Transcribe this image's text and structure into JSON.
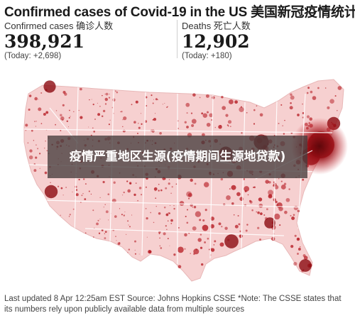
{
  "header": {
    "title": "Confirmed cases of Covid-19 in the US 美国新冠疫情统计"
  },
  "stats": {
    "confirmed": {
      "label": "Confirmed cases 确诊人数",
      "value": "398,921",
      "today": "(Today: +2,698)"
    },
    "deaths": {
      "label": "Deaths 死亡人数",
      "value": "12,902",
      "today": "(Today: +180)"
    }
  },
  "overlay": {
    "text": "疫情严重地区生源(疫情期间生源地贷款)"
  },
  "footer": {
    "text": "Last updated 8 Apr 12:25am EST Source: Johns Hopkins CSSE *Note: The CSSE states that its numbers rely upon publicly available data from multiple sources"
  },
  "colors": {
    "land": "#f6d0d0",
    "border": "#ffffff",
    "bubble": "#b3141c",
    "bubble_dark": "#8c0a10"
  },
  "map": {
    "hotspots": [
      {
        "name": "New York",
        "weight": 1.0
      },
      {
        "name": "New Jersey",
        "weight": 0.55
      },
      {
        "name": "Detroit",
        "weight": 0.4
      },
      {
        "name": "New Orleans",
        "weight": 0.35
      },
      {
        "name": "Chicago",
        "weight": 0.32
      },
      {
        "name": "Los Angeles",
        "weight": 0.3
      },
      {
        "name": "Seattle",
        "weight": 0.26
      },
      {
        "name": "Boston",
        "weight": 0.3
      },
      {
        "name": "Miami",
        "weight": 0.28
      },
      {
        "name": "Atlanta",
        "weight": 0.2
      }
    ]
  }
}
